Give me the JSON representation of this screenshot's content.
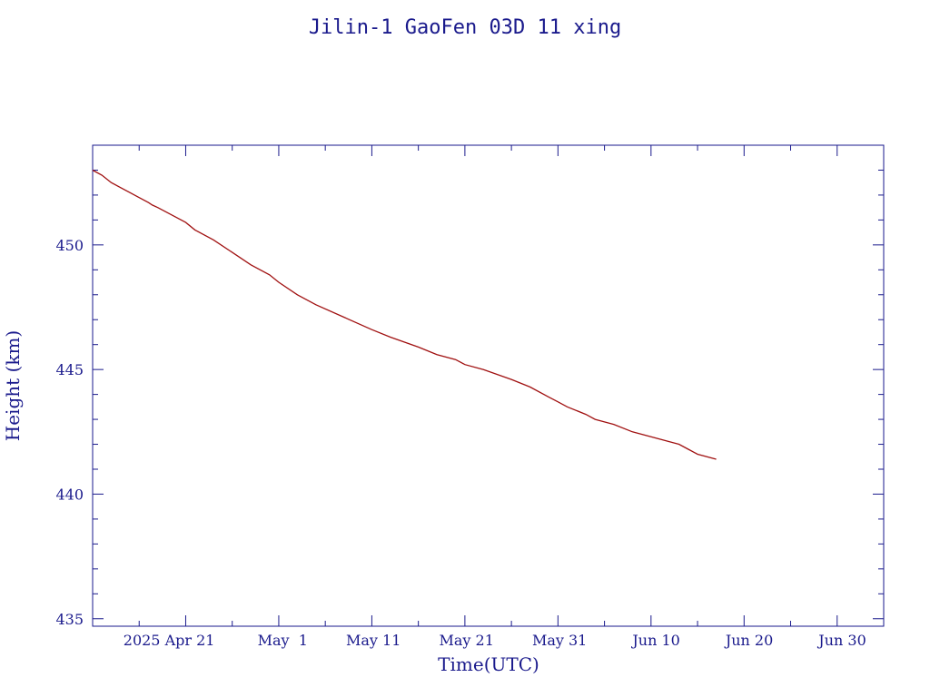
{
  "chart_data": {
    "type": "line",
    "title": "Jilin-1 GaoFen 03D 11 xing",
    "xlabel": "Time(UTC)",
    "ylabel": "Height (km)",
    "x_is_date": true,
    "xlim": [
      "2025-04-11",
      "2025-07-05"
    ],
    "ylim": [
      434.7,
      454.0
    ],
    "x_ticks": [
      {
        "date": "2025-04-21",
        "label": "2025 Apr 21"
      },
      {
        "date": "2025-05-01",
        "label": "May  1"
      },
      {
        "date": "2025-05-11",
        "label": "May 11"
      },
      {
        "date": "2025-05-21",
        "label": "May 21"
      },
      {
        "date": "2025-05-31",
        "label": "May 31"
      },
      {
        "date": "2025-06-10",
        "label": "Jun 10"
      },
      {
        "date": "2025-06-20",
        "label": "Jun 20"
      },
      {
        "date": "2025-06-30",
        "label": "Jun 30"
      }
    ],
    "x_minor_ticks": [
      "2025-04-16",
      "2025-04-26",
      "2025-05-06",
      "2025-05-16",
      "2025-05-26",
      "2025-06-05",
      "2025-06-15",
      "2025-06-25",
      "2025-07-05"
    ],
    "y_ticks": [
      435,
      440,
      445,
      450
    ],
    "y_minor_step": 1,
    "grid": false,
    "line_color": "#a01010",
    "axis_color": "#1a1a8c",
    "series": [
      {
        "x": [
          "2025-04-11",
          "2025-04-12",
          "2025-04-13",
          "2025-04-14",
          "2025-04-15",
          "2025-04-16",
          "2025-04-17",
          "2025-04-17",
          "2025-04-18",
          "2025-04-20",
          "2025-04-21",
          "2025-04-22",
          "2025-04-24",
          "2025-04-26",
          "2025-04-28",
          "2025-04-30",
          "2025-05-01",
          "2025-05-03",
          "2025-05-05",
          "2025-05-08",
          "2025-05-11",
          "2025-05-13",
          "2025-05-16",
          "2025-05-18",
          "2025-05-20",
          "2025-05-21",
          "2025-05-23",
          "2025-05-26",
          "2025-05-28",
          "2025-05-30",
          "2025-05-31",
          "2025-06-01",
          "2025-06-03",
          "2025-06-04",
          "2025-06-06",
          "2025-06-08",
          "2025-06-10",
          "2025-06-12",
          "2025-06-13",
          "2025-06-14",
          "2025-06-15",
          "2025-06-17"
        ],
        "y": [
          453.0,
          452.8,
          452.5,
          452.3,
          452.1,
          451.9,
          451.7,
          451.6,
          451.5,
          451.1,
          450.9,
          450.6,
          450.2,
          449.7,
          449.2,
          448.8,
          448.5,
          448.0,
          447.6,
          447.1,
          446.6,
          446.3,
          445.9,
          445.6,
          445.4,
          445.2,
          445.0,
          444.6,
          444.3,
          443.9,
          443.7,
          443.5,
          443.2,
          443.0,
          442.8,
          442.5,
          442.3,
          442.1,
          442.0,
          441.8,
          441.6,
          441.4
        ]
      }
    ]
  }
}
